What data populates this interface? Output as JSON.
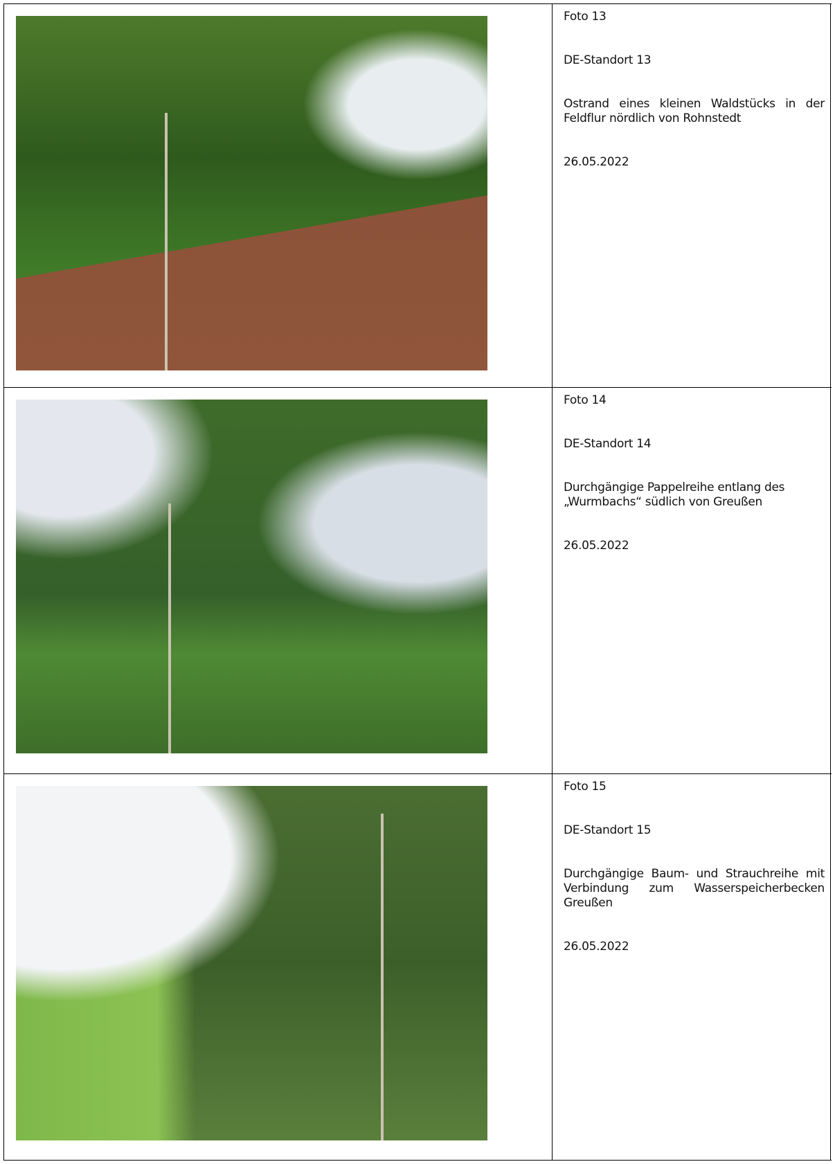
{
  "table": {
    "rows": [
      {
        "photo": "Foto 13",
        "site": "DE-Standort 13",
        "description": "Ostrand eines kleinen Waldstücks in der Feldflur nördlich von Rohnstedt",
        "date": "26.05.2022"
      },
      {
        "photo": "Foto 14",
        "site": "DE-Standort 14",
        "description": "Durchgängige Pappelreihe entlang des „Wurmbachs“ südlich von Greußen",
        "date": "26.05.2022"
      },
      {
        "photo": "Foto 15",
        "site": "DE-Standort 15",
        "description": "Durchgängige Baum- und Strauchreihe mit Verbindung zum Wasserspeicherbecken Greußen",
        "date": "26.05.2022"
      }
    ]
  }
}
